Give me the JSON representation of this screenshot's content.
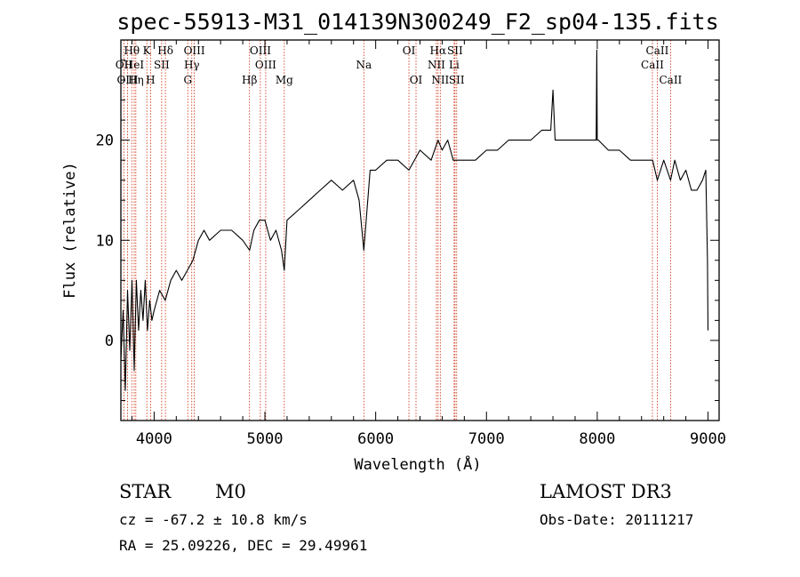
{
  "chart_data": {
    "type": "line",
    "title": "spec-55913-M31_014139N300249_F2_sp04-135.fits",
    "xlabel": "Wavelength (Å)",
    "ylabel": "Flux (relative)",
    "xlim": [
      3700,
      9100
    ],
    "ylim": [
      -8,
      30
    ],
    "xticks": [
      4000,
      5000,
      6000,
      7000,
      8000,
      9000
    ],
    "yticks": [
      0,
      10,
      20
    ],
    "grid": false,
    "series": [
      {
        "name": "spectrum",
        "x": [
          3700,
          3720,
          3740,
          3760,
          3780,
          3800,
          3820,
          3840,
          3860,
          3880,
          3900,
          3920,
          3940,
          3960,
          3980,
          4000,
          4050,
          4100,
          4150,
          4200,
          4250,
          4300,
          4350,
          4400,
          4450,
          4500,
          4600,
          4700,
          4800,
          4862,
          4900,
          4950,
          5000,
          5050,
          5100,
          5150,
          5175,
          5200,
          5300,
          5400,
          5500,
          5600,
          5700,
          5800,
          5850,
          5893,
          5950,
          6000,
          6100,
          6200,
          6300,
          6400,
          6500,
          6563,
          6600,
          6650,
          6700,
          6800,
          6900,
          7000,
          7100,
          7200,
          7300,
          7400,
          7500,
          7580,
          7600,
          7620,
          7700,
          7800,
          7900,
          7990,
          7996,
          8000,
          8010,
          8100,
          8200,
          8300,
          8400,
          8500,
          8542,
          8600,
          8662,
          8700,
          8750,
          8800,
          8850,
          8900,
          8950,
          8980,
          8995,
          9000
        ],
        "y": [
          -2,
          3,
          -5,
          5,
          -1,
          6,
          -3,
          6,
          1,
          5,
          2,
          6,
          1,
          4,
          2,
          3,
          5,
          4,
          6,
          7,
          6,
          7,
          8,
          10,
          11,
          10,
          11,
          11,
          10,
          9,
          11,
          12,
          12,
          10,
          11,
          9,
          7,
          12,
          13,
          14,
          15,
          16,
          15,
          16,
          14,
          9,
          17,
          17,
          18,
          18,
          17,
          19,
          18,
          20,
          19,
          20,
          18,
          18,
          18,
          19,
          19,
          20,
          20,
          20,
          21,
          21,
          25,
          20,
          20,
          20,
          20,
          20,
          29,
          20,
          20,
          19,
          19,
          18,
          18,
          18,
          16,
          18,
          16,
          18,
          16,
          17,
          15,
          15,
          16,
          17,
          8,
          1
        ]
      }
    ],
    "spectral_lines": [
      {
        "name": "Hθ",
        "wave": 3798,
        "row": 1
      },
      {
        "name": "OII",
        "wave": 3727,
        "row": 2
      },
      {
        "name": "OIII",
        "wave": 3760,
        "row": 3
      },
      {
        "name": "HeI",
        "wave": 3820,
        "row": 2
      },
      {
        "name": "Hη",
        "wave": 3835,
        "row": 3
      },
      {
        "name": "K",
        "wave": 3934,
        "row": 1
      },
      {
        "name": "H",
        "wave": 3968,
        "row": 3
      },
      {
        "name": "SII",
        "wave": 4068,
        "row": 2
      },
      {
        "name": "Hδ",
        "wave": 4102,
        "row": 1
      },
      {
        "name": "OIII",
        "wave": 4363,
        "row": 1
      },
      {
        "name": "Hγ",
        "wave": 4340,
        "row": 2
      },
      {
        "name": "G",
        "wave": 4304,
        "row": 3
      },
      {
        "name": "Hβ",
        "wave": 4861,
        "row": 3
      },
      {
        "name": "OIII",
        "wave": 4959,
        "row": 1
      },
      {
        "name": "OIII",
        "wave": 5007,
        "row": 2
      },
      {
        "name": "Mg",
        "wave": 5175,
        "row": 3
      },
      {
        "name": "Na",
        "wave": 5893,
        "row": 2
      },
      {
        "name": "OI",
        "wave": 6300,
        "row": 1
      },
      {
        "name": "OI",
        "wave": 6364,
        "row": 3
      },
      {
        "name": "Hα",
        "wave": 6563,
        "row": 1
      },
      {
        "name": "NII",
        "wave": 6548,
        "row": 2
      },
      {
        "name": "NII",
        "wave": 6583,
        "row": 3
      },
      {
        "name": "SII",
        "wave": 6716,
        "row": 1
      },
      {
        "name": "Li",
        "wave": 6708,
        "row": 2
      },
      {
        "name": "SII",
        "wave": 6731,
        "row": 3
      },
      {
        "name": "CaII",
        "wave": 8542,
        "row": 1
      },
      {
        "name": "CaII",
        "wave": 8498,
        "row": 2
      },
      {
        "name": "CaII",
        "wave": 8662,
        "row": 3
      }
    ],
    "colors": {
      "spectrum": "#000000",
      "lines": "#cc2200",
      "axes": "#000000"
    }
  },
  "info": {
    "object_class": "STAR",
    "subclass": "M0",
    "survey": "LAMOST DR3",
    "redshift": "cz = -67.2 ± 10.8 km/s",
    "obs_date": "Obs-Date: 20111217",
    "coords": "RA =  25.09226, DEC =  29.49961"
  }
}
